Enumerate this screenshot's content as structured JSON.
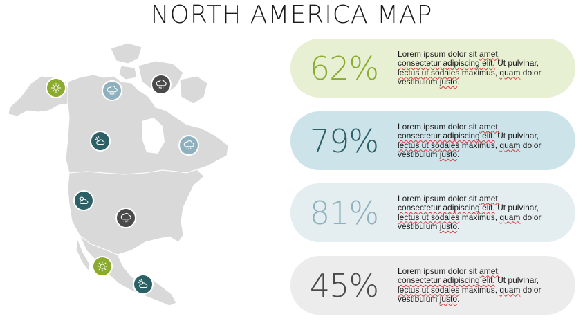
{
  "title": "NORTH AMERICA MAP",
  "colors": {
    "green": "#8aab2e",
    "teal": "#2b6067",
    "lightblue": "#8fb1bf",
    "dark": "#4a4a4a",
    "land": "#d9d9d9"
  },
  "pins": [
    {
      "icon": "sun-icon",
      "color": "#8aab2e"
    },
    {
      "icon": "cloud-rain-icon",
      "color": "#8fb1bf"
    },
    {
      "icon": "cloud-rain-icon",
      "color": "#4a4a4a"
    },
    {
      "icon": "sun-cloud-icon",
      "color": "#2b6067"
    },
    {
      "icon": "cloud-rain-icon",
      "color": "#8fb1bf"
    },
    {
      "icon": "sun-cloud-icon",
      "color": "#2b6067"
    },
    {
      "icon": "cloud-rain-icon",
      "color": "#4a4a4a"
    },
    {
      "icon": "sun-icon",
      "color": "#8aab2e"
    },
    {
      "icon": "sun-cloud-icon",
      "color": "#2b6067"
    }
  ],
  "cards": [
    {
      "value": "62%",
      "bg": "#e7f0d3",
      "fg": "#8aab2e",
      "text": {
        "l1a": "Lorem ipsum dolor sit ",
        "l1b": "amet,",
        "l2": "consectetur adipiscing elit.",
        "l2b": " Ut pulvinar,",
        "l3a": "lectus ut sodales",
        "l3b": " maximus, ",
        "l3c": "quam",
        "l3d": " dolor",
        "l4a": "vestibulum ",
        "l4b": "justo",
        "l4c": "."
      }
    },
    {
      "value": "79%",
      "bg": "#cde3ea",
      "fg": "#2b6067",
      "text": {
        "l1a": "Lorem ipsum dolor sit ",
        "l1b": "amet,",
        "l2": "consectetur adipiscing elit.",
        "l2b": " Ut pulvinar,",
        "l3a": "lectus ut sodales",
        "l3b": " maximus, ",
        "l3c": "quam",
        "l3d": " dolor",
        "l4a": "vestibulum ",
        "l4b": "justo",
        "l4c": "."
      }
    },
    {
      "value": "81%",
      "bg": "#e4edf0",
      "fg": "#8fb1bf",
      "text": {
        "l1a": "Lorem ipsum dolor sit ",
        "l1b": "amet,",
        "l2": "consectetur adipiscing elit.",
        "l2b": " Ut pulvinar,",
        "l3a": "lectus ut sodales",
        "l3b": " maximus, ",
        "l3c": "quam",
        "l3d": " dolor",
        "l4a": "vestibulum ",
        "l4b": "justo",
        "l4c": "."
      }
    },
    {
      "value": "45%",
      "bg": "#ececec",
      "fg": "#4a4a4a",
      "text": {
        "l1a": "Lorem ipsum dolor sit ",
        "l1b": "amet,",
        "l2": "consectetur adipiscing elit.",
        "l2b": " Ut pulvinar,",
        "l3a": "lectus ut sodales",
        "l3b": " maximus, ",
        "l3c": "quam",
        "l3d": " dolor",
        "l4a": "vestibulum ",
        "l4b": "justo",
        "l4c": "."
      }
    }
  ]
}
